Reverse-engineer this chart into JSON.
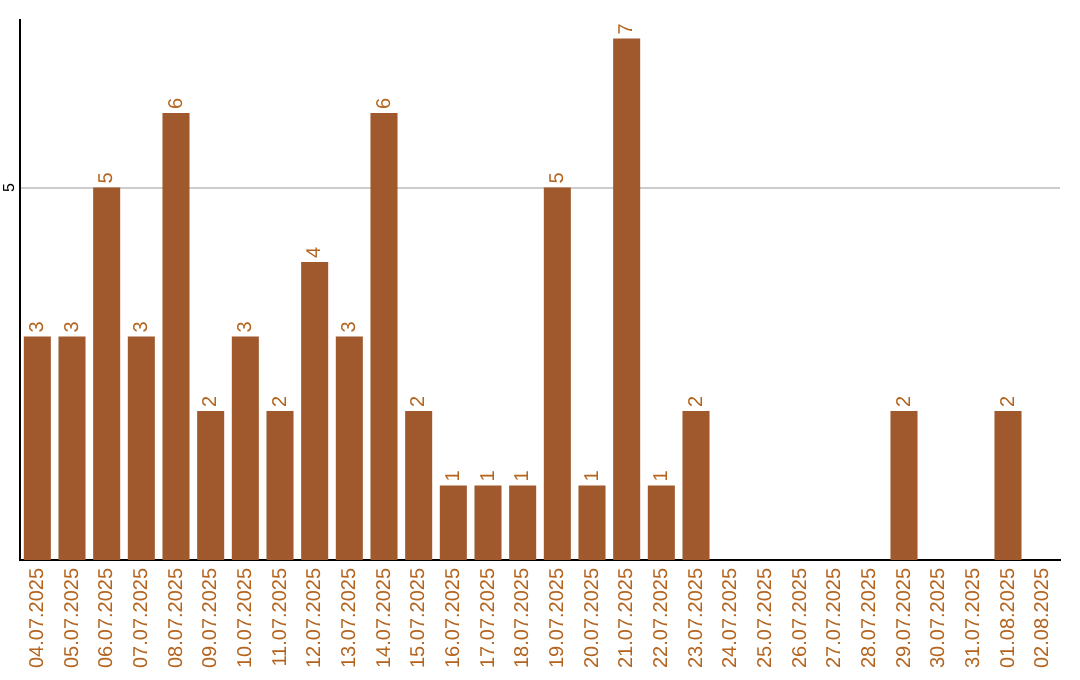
{
  "chart_data": {
    "type": "bar",
    "categories": [
      "04.07.2025",
      "05.07.2025",
      "06.07.2025",
      "07.07.2025",
      "08.07.2025",
      "09.07.2025",
      "10.07.2025",
      "11.07.2025",
      "12.07.2025",
      "13.07.2025",
      "14.07.2025",
      "15.07.2025",
      "16.07.2025",
      "17.07.2025",
      "18.07.2025",
      "19.07.2025",
      "20.07.2025",
      "21.07.2025",
      "22.07.2025",
      "23.07.2025",
      "24.07.2025",
      "25.07.2025",
      "26.07.2025",
      "27.07.2025",
      "28.07.2025",
      "29.07.2025",
      "30.07.2025",
      "31.07.2025",
      "01.08.2025",
      "02.08.2025"
    ],
    "values": [
      3,
      3,
      5,
      3,
      6,
      2,
      3,
      2,
      4,
      3,
      6,
      2,
      1,
      1,
      1,
      5,
      1,
      7,
      1,
      2,
      0,
      0,
      0,
      0,
      0,
      2,
      0,
      0,
      2,
      0
    ],
    "value_labels": [
      "3",
      "3",
      "5",
      "3",
      "6",
      "2",
      "3",
      "2",
      "4",
      "3",
      "6",
      "2",
      "1",
      "1",
      "1",
      "5",
      "1",
      "7",
      "1",
      "2",
      null,
      null,
      null,
      null,
      null,
      "2",
      null,
      null,
      "2",
      null
    ],
    "color": "#a0592d",
    "ylim": [
      0,
      7.25
    ],
    "yticks": [
      5
    ],
    "grid": "y",
    "legend": false
  }
}
